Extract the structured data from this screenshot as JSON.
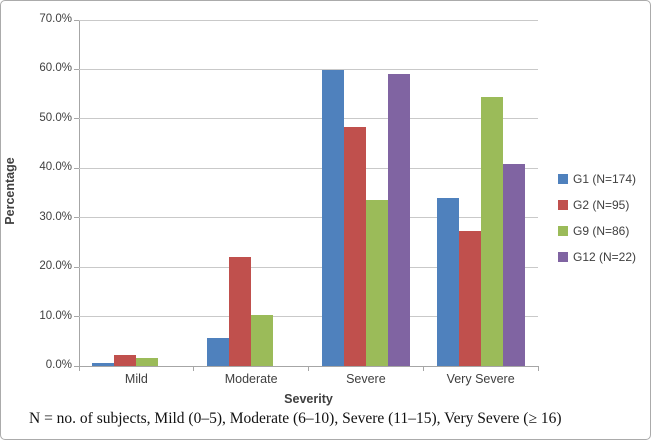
{
  "chart_data": {
    "type": "bar",
    "title": "",
    "xlabel": "Severity",
    "ylabel": "Percentage",
    "categories": [
      "Mild",
      "Moderate",
      "Severe",
      "Very Severe"
    ],
    "series": [
      {
        "label": "G1 (N=174)",
        "color": "#4F81BD",
        "values": [
          0.6,
          5.7,
          59.8,
          33.9
        ]
      },
      {
        "label": "G2 (N=95)",
        "color": "#C0504D",
        "values": [
          2.2,
          22.1,
          48.4,
          27.4
        ]
      },
      {
        "label": "G9 (N=86)",
        "color": "#9BBB59",
        "values": [
          1.7,
          10.3,
          33.6,
          54.5
        ]
      },
      {
        "label": "G12 (N=22)",
        "color": "#8064A2",
        "values": [
          0,
          0,
          59.1,
          40.9
        ]
      }
    ],
    "ylim": [
      0,
      70
    ],
    "ytick_step": 10,
    "ytick_labels": [
      "0.0%",
      "10.0%",
      "20.0%",
      "30.0%",
      "40.0%",
      "50.0%",
      "60.0%",
      "70.0%"
    ],
    "grid": true,
    "legend_position": "right"
  },
  "caption": "N = no. of subjects, Mild (0–5), Moderate (6–10), Severe (11–15), Very Severe (≥ 16)",
  "colors": {
    "gridline": "#C9C9C9",
    "axis": "#A6A6A6",
    "text": "#3F3F3F",
    "frame_border": "#ABABAB"
  }
}
